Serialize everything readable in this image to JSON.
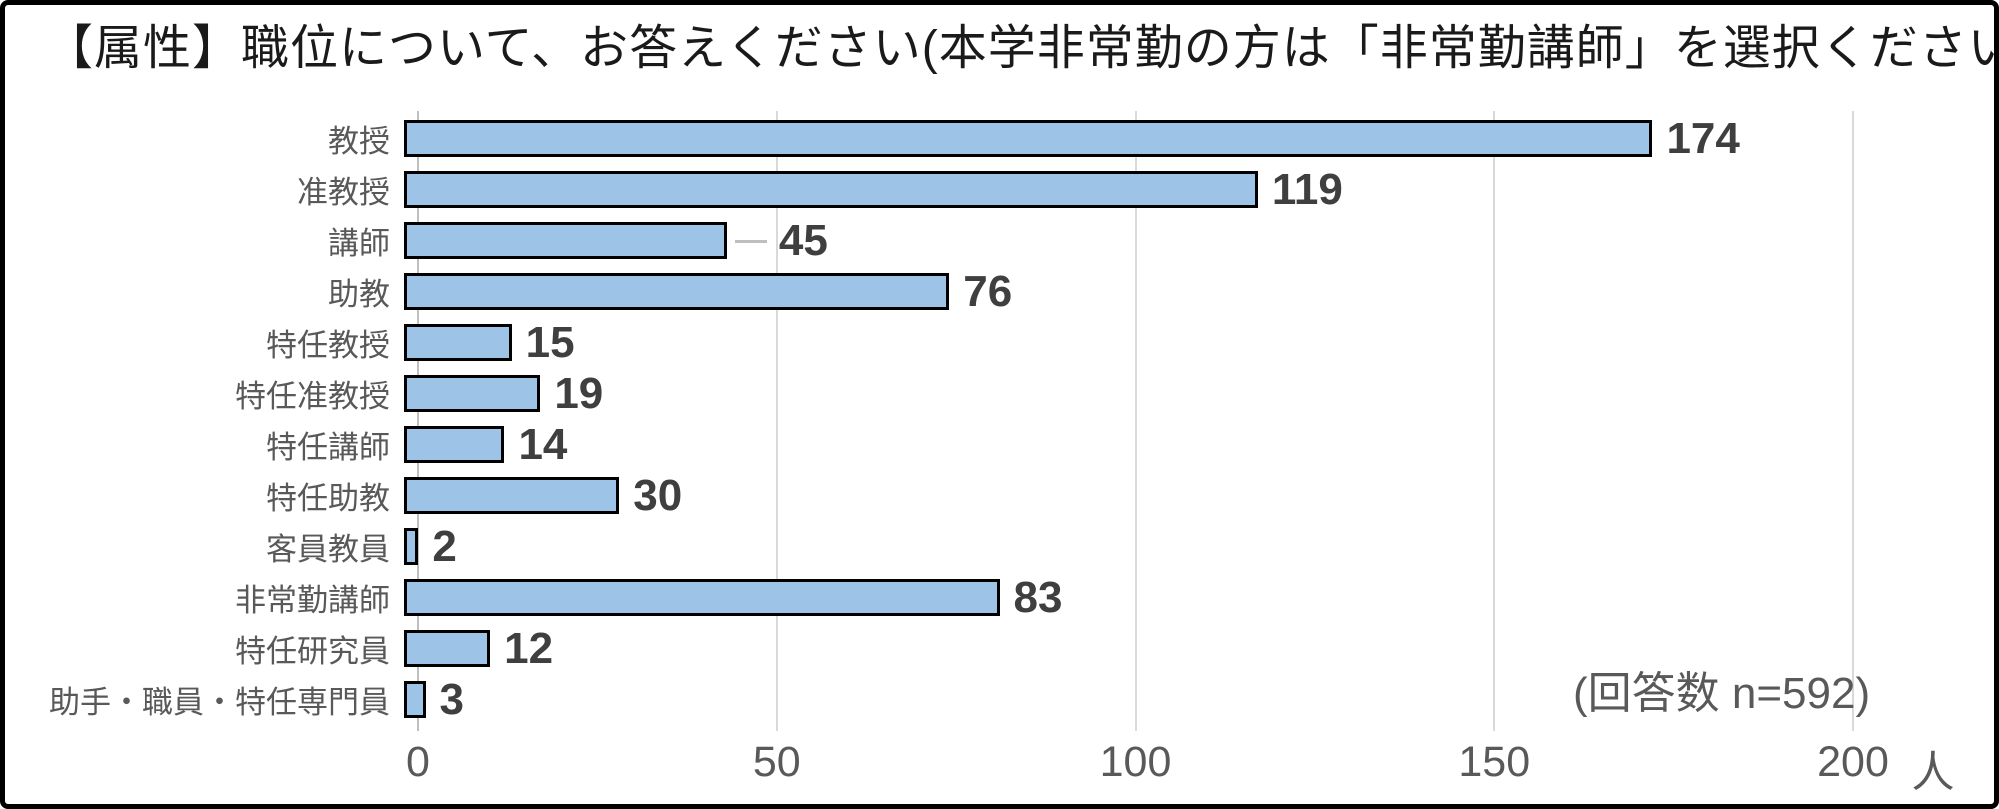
{
  "title": "【属性】職位について、お答えください(本学非常勤の方は「非常勤講師」を選択ください)。",
  "annotation": "(回答数 n=592)",
  "colors": {
    "bar_fill": "#9DC3E6",
    "bar_border": "#000000",
    "gridline": "#D9D9D9",
    "axis_line": "#BFBFBF",
    "category_text": "#595959",
    "tick_text": "#595959",
    "value_text": "#3F3F3F",
    "title_text": "#1A1A1A"
  },
  "chart_data": {
    "type": "bar",
    "orientation": "horizontal",
    "title": "【属性】職位について、お答えください(本学非常勤の方は「非常勤講師」を選択ください)。",
    "categories": [
      "教授",
      "准教授",
      "講師",
      "助教",
      "特任教授",
      "特任准教授",
      "特任講師",
      "特任助教",
      "客員教員",
      "非常勤講師",
      "特任研究員",
      "助手・職員・特任専門員"
    ],
    "values": [
      174,
      119,
      45,
      76,
      15,
      19,
      14,
      30,
      2,
      83,
      12,
      3
    ],
    "xlim": [
      0,
      200
    ],
    "x_ticks": [
      0,
      50,
      100,
      150,
      200
    ],
    "x_unit": "人",
    "xlabel": "人",
    "ylabel": "",
    "grid": true,
    "legend": false,
    "data_labels": true,
    "leader_line_categories": [
      "講師"
    ],
    "sample_note": "(回答数 n=592)"
  }
}
